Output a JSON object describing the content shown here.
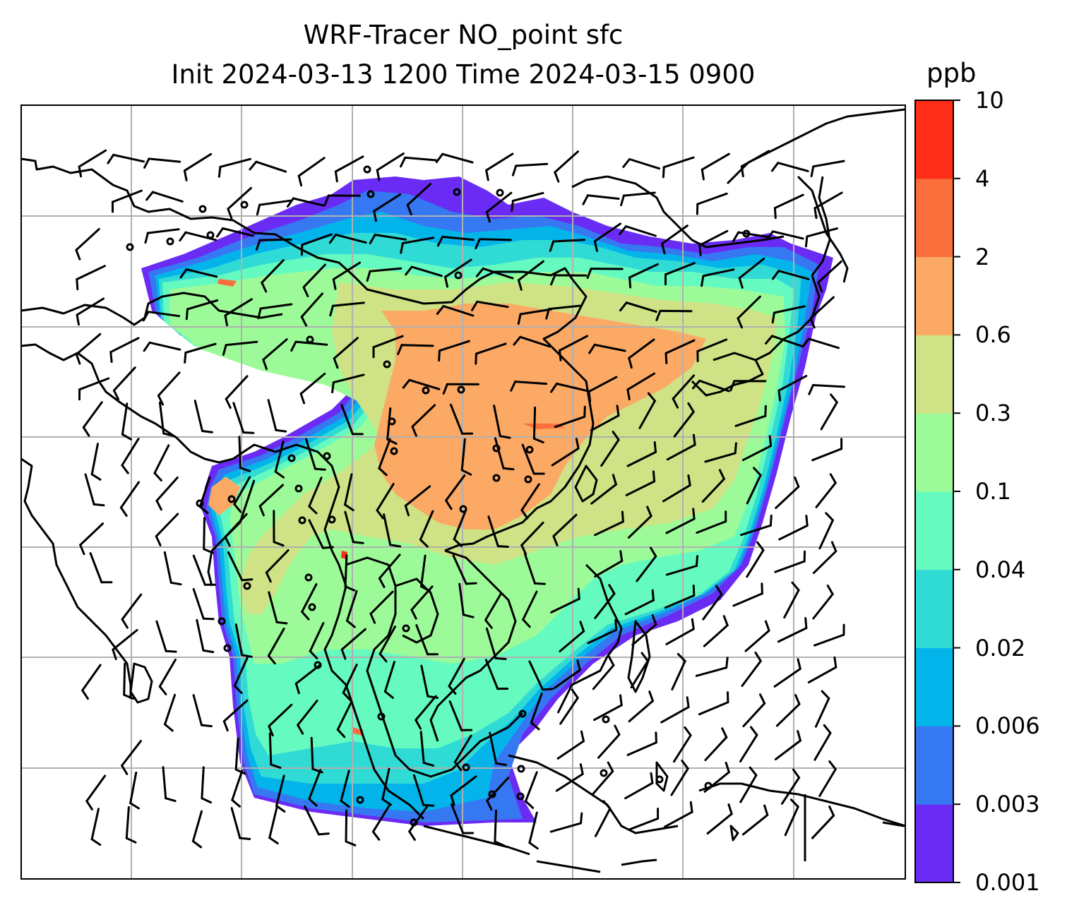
{
  "title": {
    "line1": "WRF-Tracer NO_point sfc",
    "line2": "Init 2024-03-13 1200 Time 2024-03-15 0900"
  },
  "colorbar": {
    "units": "ppb",
    "levels": [
      "0.001",
      "0.003",
      "0.006",
      "0.02",
      "0.04",
      "0.1",
      "0.3",
      "0.6",
      "2",
      "4",
      "10"
    ],
    "colors": [
      "#6a2cf5",
      "#3677f2",
      "#03b4ea",
      "#31dbd5",
      "#64fac0",
      "#9cfb98",
      "#cfe285",
      "#fca965",
      "#fb6f3c",
      "#fe2d18"
    ]
  },
  "map": {
    "gridline_color": "#b0b0b0",
    "coastline_color": "#000000",
    "wind_barb_color": "#000000"
  }
}
